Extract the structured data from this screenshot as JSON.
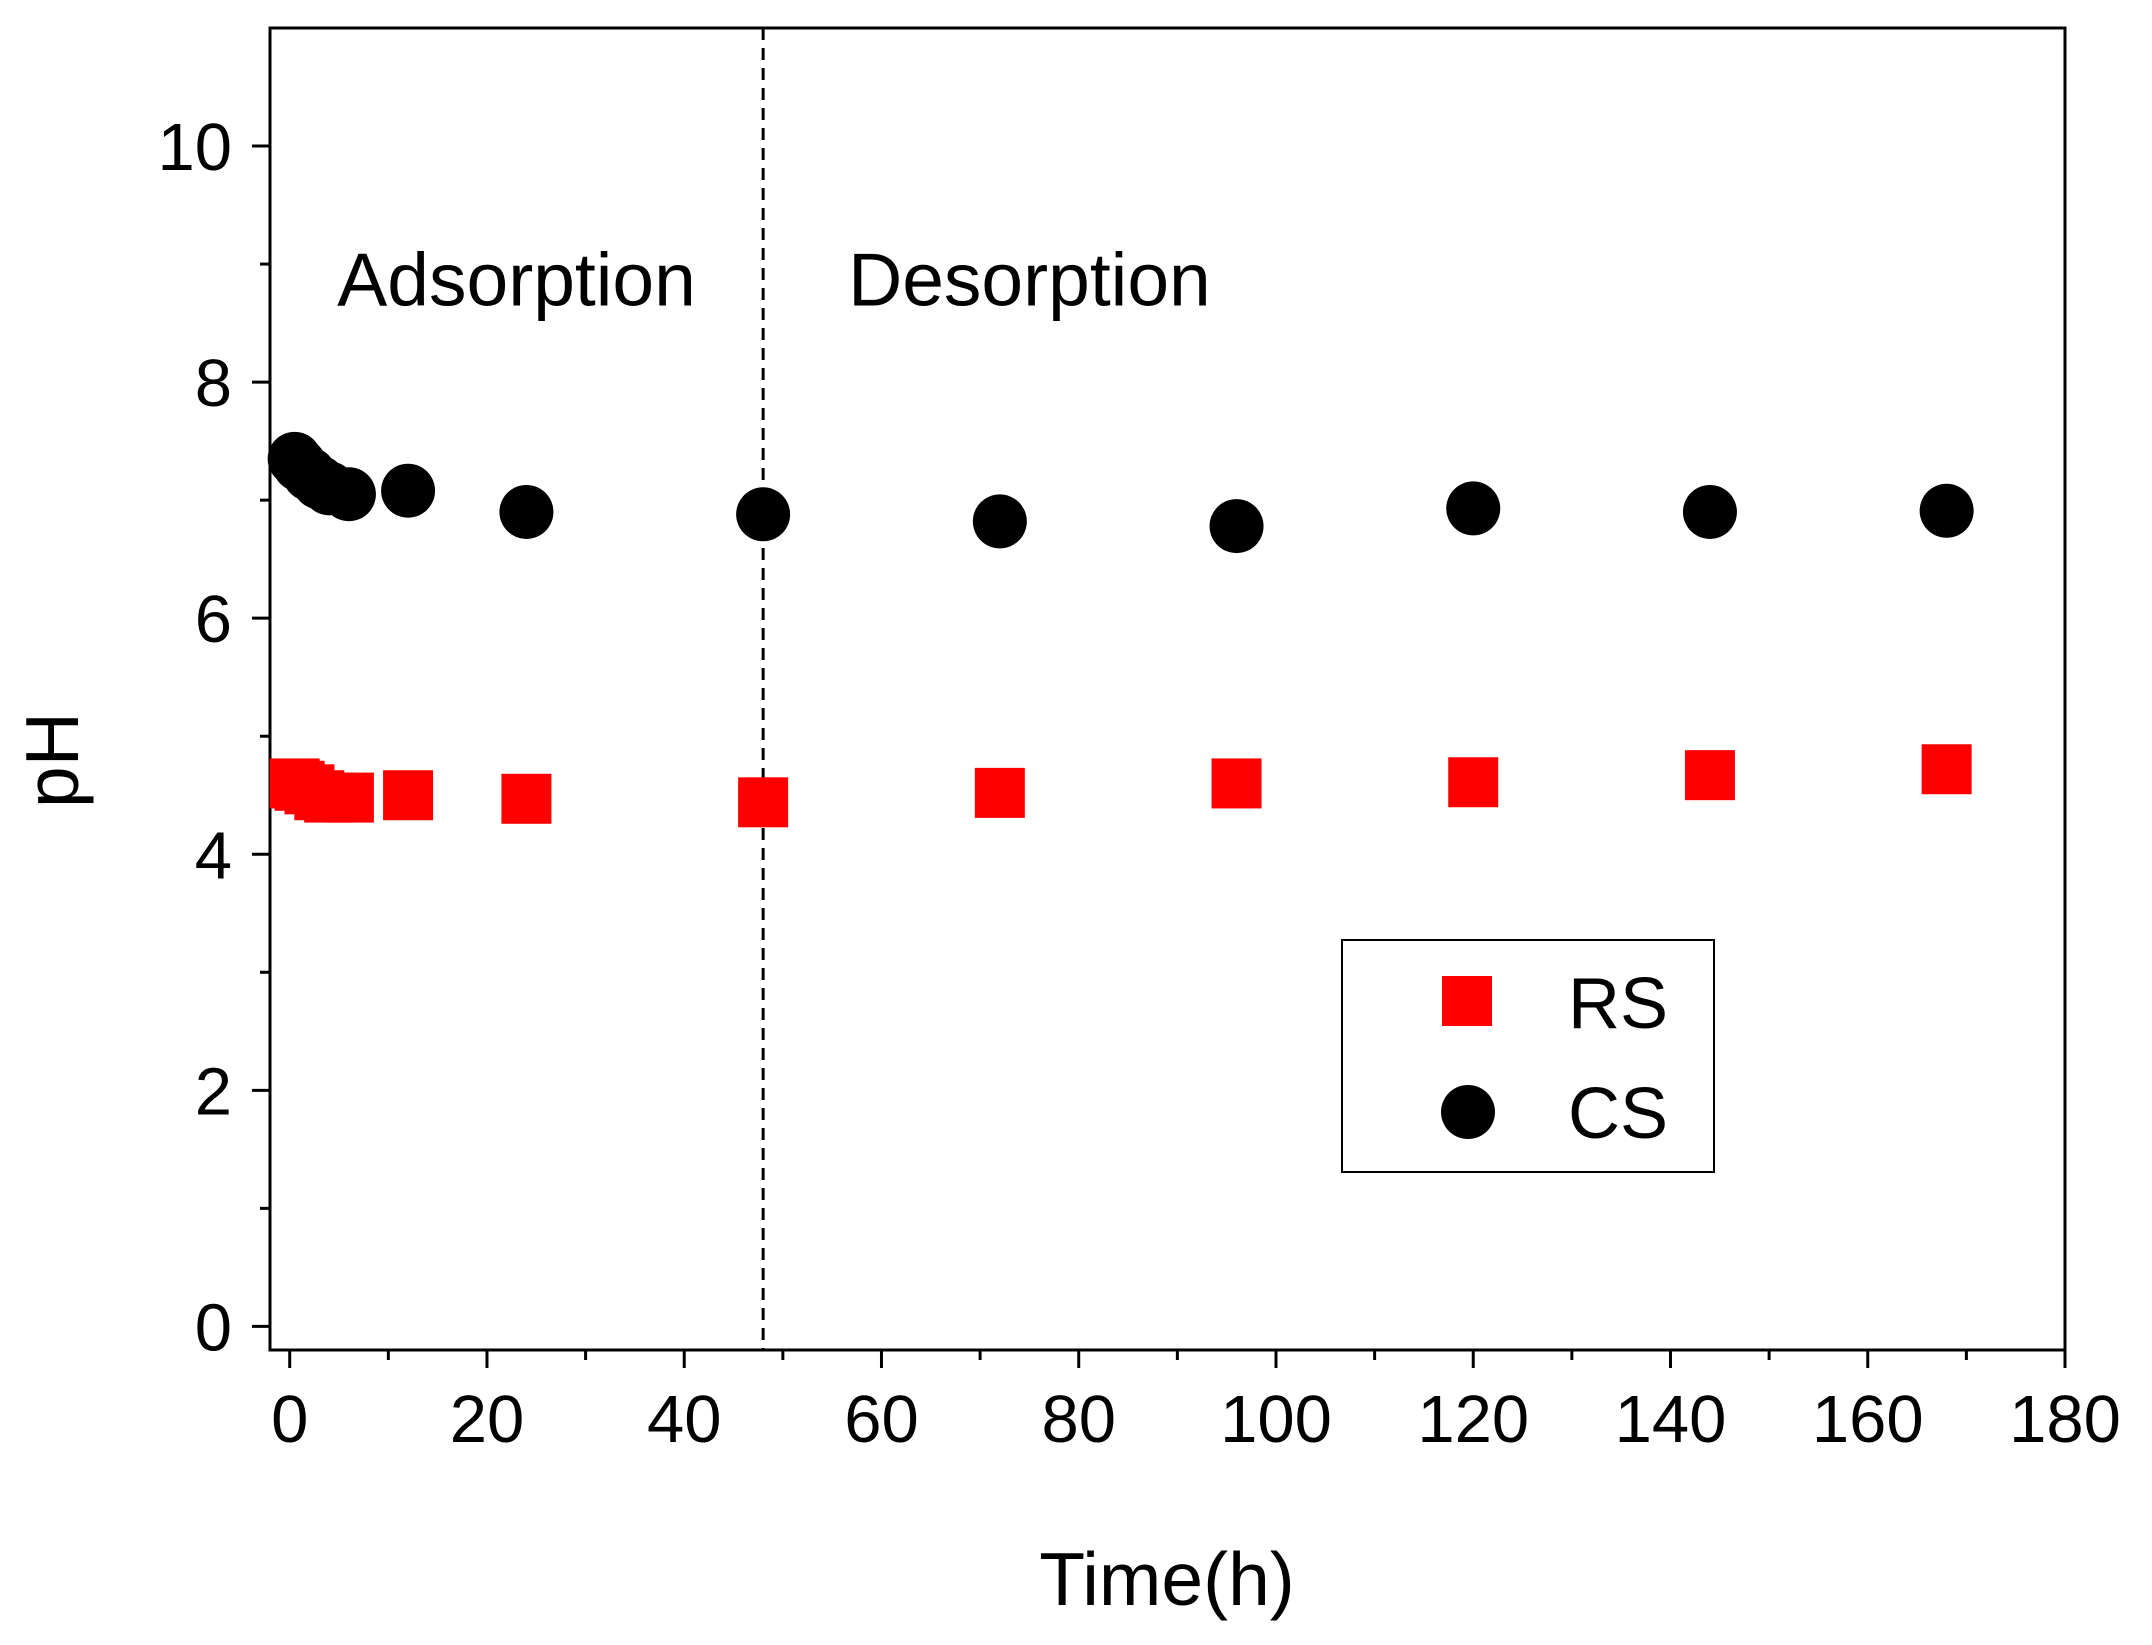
{
  "chart_data": {
    "type": "scatter",
    "title": "",
    "xlabel": "Time(h)",
    "ylabel": "pH",
    "xlim": [
      -2,
      180
    ],
    "ylim": [
      -0.2,
      11.0
    ],
    "xticks": [
      0,
      20,
      40,
      60,
      80,
      100,
      120,
      140,
      160,
      180
    ],
    "yticks": [
      0,
      2,
      4,
      6,
      8,
      10
    ],
    "grid": false,
    "divider": {
      "x": 48,
      "style": "dashed"
    },
    "annotations": [
      {
        "text": "Adsorption",
        "x": 23,
        "y": 8.65
      },
      {
        "text": "Desorption",
        "x": 75,
        "y": 8.65
      }
    ],
    "legend_position": "bottom-right",
    "series": [
      {
        "name": "RS",
        "marker": "square",
        "color": "#ff0000",
        "x": [
          0.5,
          1,
          2,
          3,
          4,
          6,
          12,
          24,
          48,
          72,
          96,
          120,
          144,
          168
        ],
        "y": [
          4.6,
          4.58,
          4.55,
          4.5,
          4.48,
          4.48,
          4.5,
          4.47,
          4.44,
          4.52,
          4.6,
          4.61,
          4.67,
          4.72
        ]
      },
      {
        "name": "CS",
        "marker": "circle",
        "color": "#000000",
        "x": [
          0.5,
          1,
          2,
          3,
          4,
          6,
          12,
          24,
          48,
          72,
          96,
          120,
          144,
          168
        ],
        "y": [
          7.35,
          7.3,
          7.22,
          7.15,
          7.1,
          7.05,
          7.08,
          6.9,
          6.88,
          6.82,
          6.78,
          6.93,
          6.9,
          6.91
        ]
      }
    ]
  }
}
